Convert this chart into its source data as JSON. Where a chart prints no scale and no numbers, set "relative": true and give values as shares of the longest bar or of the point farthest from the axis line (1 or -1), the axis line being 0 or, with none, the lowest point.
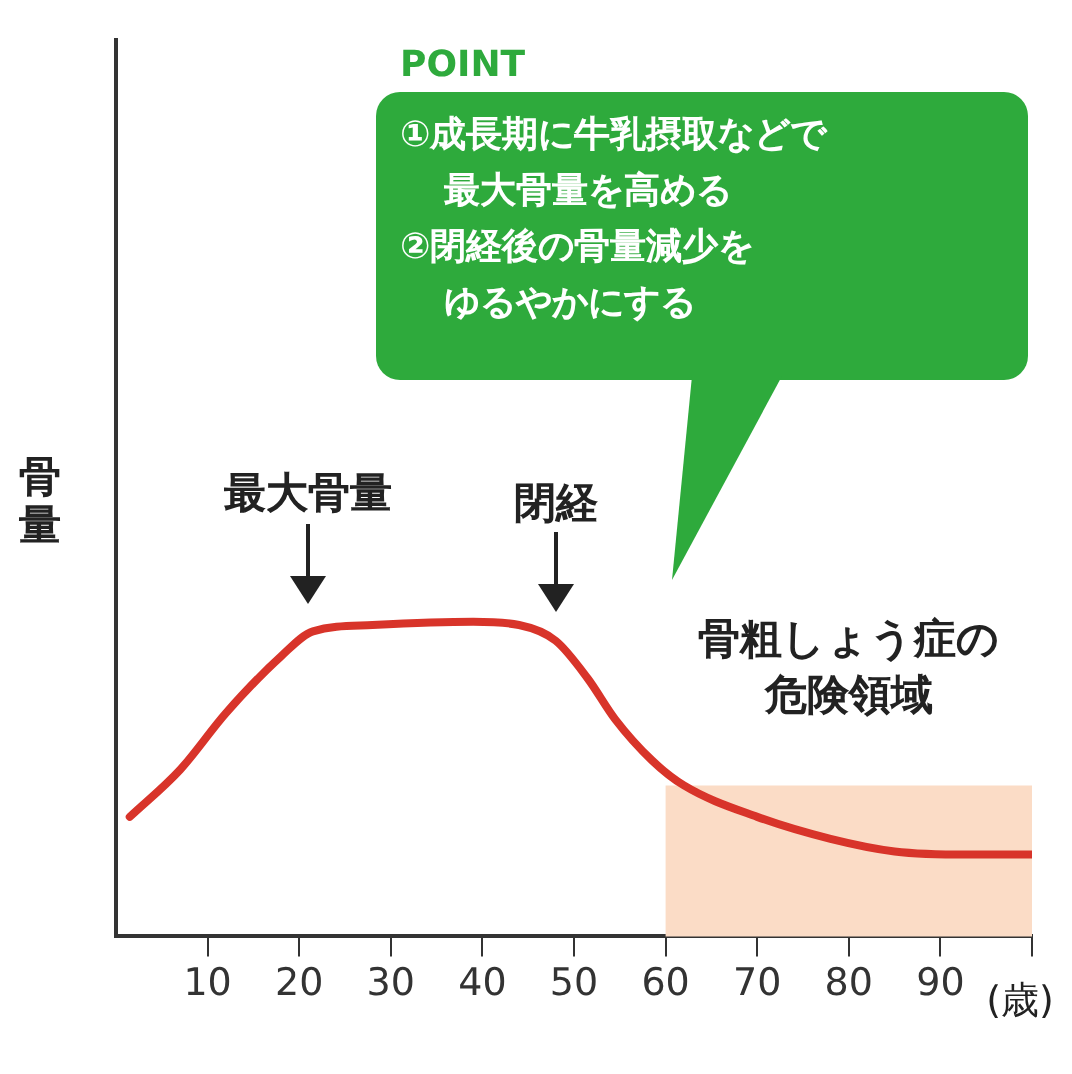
{
  "chart_data": {
    "type": "line",
    "relative": true,
    "ylabel": "骨量",
    "xlabel": "(歳)",
    "xlim": [
      0,
      100
    ],
    "xticks": [
      10,
      20,
      30,
      40,
      50,
      60,
      70,
      80,
      90,
      {
        "value": 100,
        "label": null
      }
    ],
    "x": [
      1.5,
      7,
      12,
      18,
      21.5,
      28,
      39,
      44,
      48,
      51.5,
      54.5,
      58.5,
      62,
      70,
      78,
      85,
      93,
      100
    ],
    "series": [
      {
        "color": "#d8342a",
        "values": [
          0.38,
          0.53,
          0.71,
          0.89,
          0.97,
          0.99,
          1.0,
          0.99,
          0.94,
          0.82,
          0.69,
          0.56,
          0.48,
          0.38,
          0.31,
          0.27,
          0.26,
          0.26
        ]
      }
    ],
    "bands": [
      {
        "axis": "x",
        "from": 60,
        "to": 100,
        "label": "骨粗しょう症の危険領域",
        "color": "#fbdcc6"
      }
    ],
    "annotations": [
      "POINT",
      "①成長期に牛乳摂取などで",
      "最大骨量を高める",
      "②閉経後の骨量減少を",
      "ゆるやかにする",
      {
        "text": "最大骨量",
        "x": 21,
        "y": 0.97
      },
      {
        "text": "閉経",
        "x": 48,
        "y": 0.94
      }
    ],
    "grid": false,
    "legend": false,
    "marker": "none",
    "line_style": "solid"
  }
}
